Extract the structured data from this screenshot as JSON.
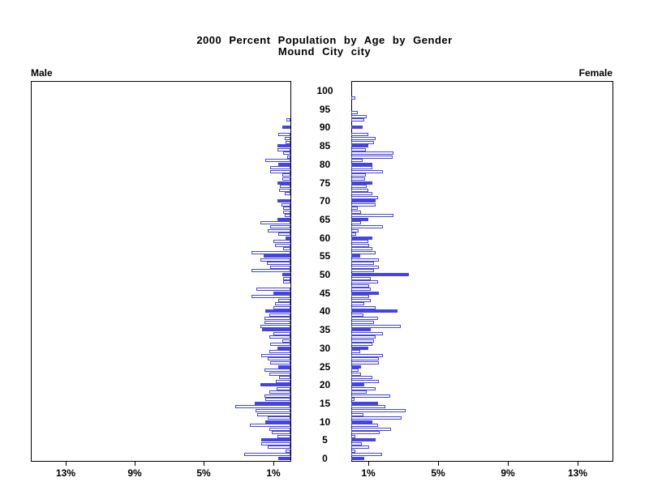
{
  "title": {
    "line1": "2000 Percent Population by Age by Gender",
    "line2": "Mound City city"
  },
  "left_header": "Male",
  "right_header": "Female",
  "colors": {
    "bar_blue": "#4343e8",
    "bar_outline": "#4343e8",
    "axis_black": "#000000",
    "background": "#ffffff"
  },
  "chart_data": {
    "type": "bar",
    "subtype": "population-pyramid",
    "title": "2000 Percent Population by Age by Gender",
    "subtitle": "Mound City city",
    "unit": "percent of total population per single year of age",
    "orientation": "horizontal, male bars extend left, female bars extend right",
    "axis_max_percent": 15,
    "age_min": 0,
    "age_max": 100,
    "age_axis_tick_interval": 5,
    "age_axis_tick_labels": [
      "100",
      "95",
      "90",
      "85",
      "80",
      "75",
      "70",
      "65",
      "60",
      "55",
      "50",
      "45",
      "40",
      "35",
      "30",
      "25",
      "20",
      "15",
      "10",
      "5",
      "0"
    ],
    "x_ticks_male_labels": [
      "13%",
      "9%",
      "5%",
      "1%"
    ],
    "x_ticks_male_values": [
      13,
      9,
      5,
      1
    ],
    "x_ticks_female_labels": [
      "1%",
      "5%",
      "9%",
      "13%"
    ],
    "x_ticks_female_values": [
      1,
      5,
      9,
      13
    ],
    "highlight_rule": "bars for ages divisible by 5 are solid blue; other ages are white with blue outline",
    "ages": "index of each values array entry equals age in years, 0 through 100",
    "series": [
      {
        "name": "Male",
        "values": [
          0.7,
          2.65,
          0.28,
          1.3,
          1.69,
          1.69,
          0.73,
          1.1,
          1.24,
          2.36,
          1.47,
          1.3,
          1.94,
          2.03,
          3.17,
          2.06,
          1.45,
          1.48,
          1.23,
          0.79,
          1.72,
          0.86,
          0.64,
          1.23,
          1.48,
          0.71,
          1.16,
          1.3,
          1.67,
          1.23,
          0.74,
          1.19,
          0.49,
          1.23,
          1.0,
          1.63,
          1.72,
          1.48,
          1.48,
          1.23,
          1.45,
          1.0,
          0.89,
          0.71,
          2.27,
          1.0,
          1.97,
          0.0,
          0.41,
          0.41,
          0.49,
          2.27,
          1.19,
          1.38,
          1.72,
          1.57,
          2.27,
          0.41,
          0.89,
          1.0,
          0.3,
          0.71,
          1.3,
          1.16,
          1.72,
          0.74,
          0.34,
          0.44,
          0.41,
          0.53,
          0.74,
          0.0,
          0.34,
          0.64,
          0.6,
          0.74,
          0.49,
          0.49,
          1.16,
          1.16,
          0.71,
          1.45,
          0.19,
          0.41,
          0.74,
          0.74,
          0.27,
          0.34,
          0.71,
          0.0,
          0.47,
          0.0,
          0.24,
          0.0,
          0.0,
          0.0,
          0.0,
          0.0,
          0.0,
          0.0,
          0.0
        ]
      },
      {
        "name": "Female",
        "values": [
          0.74,
          1.78,
          0.22,
          1.04,
          0.59,
          1.38,
          0.22,
          1.63,
          2.3,
          1.56,
          1.23,
          2.89,
          0.7,
          3.11,
          1.97,
          1.56,
          0.2,
          2.22,
          0.89,
          1.38,
          0.74,
          1.59,
          1.19,
          0.55,
          0.44,
          0.55,
          1.59,
          1.59,
          1.82,
          0.52,
          0.96,
          1.19,
          1.29,
          1.38,
          1.82,
          1.14,
          2.86,
          1.3,
          1.56,
          0.7,
          2.67,
          1.38,
          0.74,
          1.14,
          1.04,
          1.59,
          1.14,
          1.04,
          1.56,
          1.14,
          3.33,
          1.29,
          1.59,
          1.29,
          1.59,
          0.49,
          1.38,
          1.19,
          1.04,
          1.0,
          1.19,
          0.3,
          0.44,
          1.82,
          0.55,
          0.96,
          2.44,
          0.55,
          0.37,
          1.38,
          1.41,
          1.56,
          1.19,
          0.96,
          0.89,
          1.19,
          0.79,
          0.84,
          1.82,
          1.19,
          1.19,
          0.67,
          2.37,
          2.44,
          0.84,
          0.96,
          1.29,
          1.38,
          0.96,
          0.0,
          0.67,
          0.0,
          0.74,
          0.89,
          0.37,
          0.0,
          0.0,
          0.0,
          0.22,
          0.0,
          0.0
        ]
      }
    ]
  }
}
